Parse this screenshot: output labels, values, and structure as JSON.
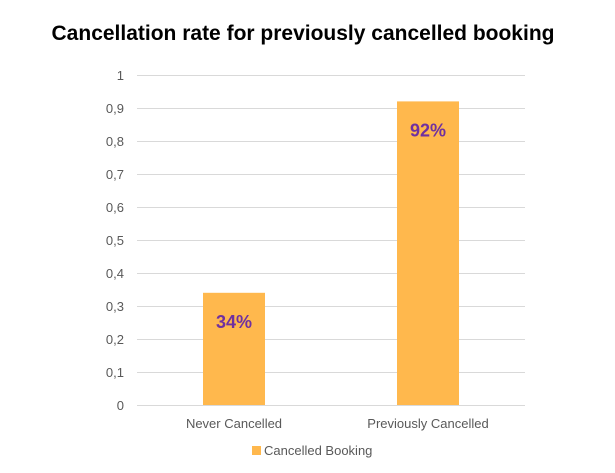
{
  "colors": {
    "bar": "#FFB84D",
    "data_label": "#7030A0",
    "gridline": "#D9D9D9",
    "axis_text": "#595959"
  },
  "chart_data": {
    "type": "bar",
    "title": "Cancellation rate for previously cancelled booking",
    "categories": [
      "Never Cancelled",
      "Previously Cancelled"
    ],
    "series": [
      {
        "name": "Cancelled Booking",
        "values": [
          0.34,
          0.92
        ],
        "data_labels": [
          "34%",
          "92%"
        ]
      }
    ],
    "ylim": [
      0,
      1
    ],
    "yticks": [
      0,
      0.1,
      0.2,
      0.3,
      0.4,
      0.5,
      0.6,
      0.7,
      0.8,
      0.9,
      1
    ],
    "ytick_labels": [
      "0",
      "0,1",
      "0,2",
      "0,3",
      "0,4",
      "0,5",
      "0,6",
      "0,7",
      "0,8",
      "0,9",
      "1"
    ],
    "xlabel": "",
    "ylabel": "",
    "grid": true,
    "legend_position": "bottom"
  }
}
